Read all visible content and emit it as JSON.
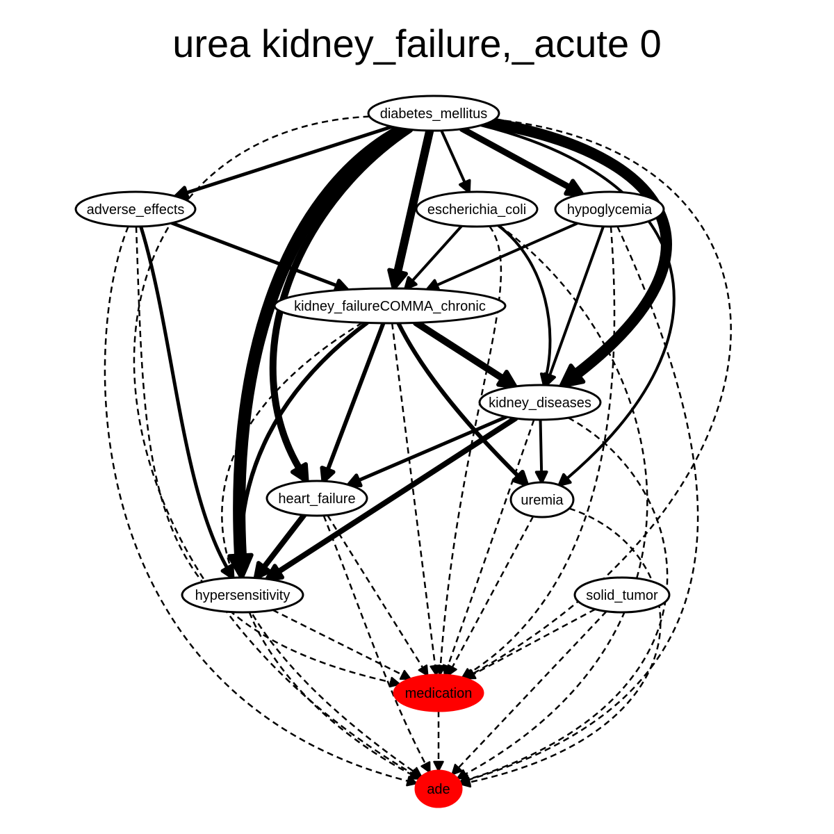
{
  "title": "urea kidney_failure,_acute 0",
  "colors": {
    "highlight": "#ff0000",
    "default_fill": "#ffffff",
    "stroke": "#000000"
  },
  "nodes": {
    "diabetes_mellitus": {
      "label": "diabetes_mellitus",
      "highlight": false
    },
    "adverse_effects": {
      "label": "adverse_effects",
      "highlight": false
    },
    "escherichia_coli": {
      "label": "escherichia_coli",
      "highlight": false
    },
    "hypoglycemia": {
      "label": "hypoglycemia",
      "highlight": false
    },
    "kidney_failure_chronic": {
      "label": "kidney_failureCOMMA_chronic",
      "highlight": false
    },
    "kidney_diseases": {
      "label": "kidney_diseases",
      "highlight": false
    },
    "heart_failure": {
      "label": "heart_failure",
      "highlight": false
    },
    "uremia": {
      "label": "uremia",
      "highlight": false
    },
    "hypersensitivity": {
      "label": "hypersensitivity",
      "highlight": false
    },
    "solid_tumor": {
      "label": "solid_tumor",
      "highlight": false
    },
    "medication": {
      "label": "medication",
      "highlight": true
    },
    "ade": {
      "label": "ade",
      "highlight": true
    }
  },
  "edges": [
    {
      "from": "diabetes_mellitus",
      "to": "adverse_effects",
      "style": "solid",
      "weight": 5
    },
    {
      "from": "diabetes_mellitus",
      "to": "escherichia_coli",
      "style": "solid",
      "weight": 4
    },
    {
      "from": "diabetes_mellitus",
      "to": "hypoglycemia",
      "style": "solid",
      "weight": 9
    },
    {
      "from": "diabetes_mellitus",
      "to": "kidney_failure_chronic",
      "style": "solid",
      "weight": 12
    },
    {
      "from": "diabetes_mellitus",
      "to": "kidney_diseases",
      "style": "solid",
      "weight": 16
    },
    {
      "from": "diabetes_mellitus",
      "to": "heart_failure",
      "style": "solid",
      "weight": 10
    },
    {
      "from": "diabetes_mellitus",
      "to": "hypersensitivity",
      "style": "solid",
      "weight": 18
    },
    {
      "from": "diabetes_mellitus",
      "to": "uremia",
      "style": "solid",
      "weight": 4
    },
    {
      "from": "diabetes_mellitus",
      "to": "medication",
      "style": "dashed",
      "weight": 2.5
    },
    {
      "from": "diabetes_mellitus",
      "to": "ade",
      "style": "dashed",
      "weight": 2.5
    },
    {
      "from": "adverse_effects",
      "to": "kidney_failure_chronic",
      "style": "solid",
      "weight": 5
    },
    {
      "from": "adverse_effects",
      "to": "hypersensitivity",
      "style": "solid",
      "weight": 5
    },
    {
      "from": "adverse_effects",
      "to": "medication",
      "style": "dashed",
      "weight": 2.5
    },
    {
      "from": "adverse_effects",
      "to": "ade",
      "style": "dashed",
      "weight": 2.5
    },
    {
      "from": "escherichia_coli",
      "to": "kidney_failure_chronic",
      "style": "solid",
      "weight": 4
    },
    {
      "from": "escherichia_coli",
      "to": "kidney_diseases",
      "style": "solid",
      "weight": 4
    },
    {
      "from": "escherichia_coli",
      "to": "medication",
      "style": "dashed",
      "weight": 2.5
    },
    {
      "from": "escherichia_coli",
      "to": "ade",
      "style": "dashed",
      "weight": 2.5
    },
    {
      "from": "hypoglycemia",
      "to": "kidney_failure_chronic",
      "style": "solid",
      "weight": 4
    },
    {
      "from": "hypoglycemia",
      "to": "kidney_diseases",
      "style": "solid",
      "weight": 4
    },
    {
      "from": "hypoglycemia",
      "to": "medication",
      "style": "dashed",
      "weight": 2.5
    },
    {
      "from": "hypoglycemia",
      "to": "ade",
      "style": "dashed",
      "weight": 2.5
    },
    {
      "from": "kidney_failure_chronic",
      "to": "kidney_diseases",
      "style": "solid",
      "weight": 10
    },
    {
      "from": "kidney_failure_chronic",
      "to": "heart_failure",
      "style": "solid",
      "weight": 6
    },
    {
      "from": "kidney_failure_chronic",
      "to": "hypersensitivity",
      "style": "solid",
      "weight": 6
    },
    {
      "from": "kidney_failure_chronic",
      "to": "uremia",
      "style": "solid",
      "weight": 6
    },
    {
      "from": "kidney_failure_chronic",
      "to": "medication",
      "style": "dashed",
      "weight": 2.5
    },
    {
      "from": "kidney_failure_chronic",
      "to": "ade",
      "style": "dashed",
      "weight": 2.5
    },
    {
      "from": "kidney_diseases",
      "to": "heart_failure",
      "style": "solid",
      "weight": 5
    },
    {
      "from": "kidney_diseases",
      "to": "hypersensitivity",
      "style": "solid",
      "weight": 8
    },
    {
      "from": "kidney_diseases",
      "to": "uremia",
      "style": "solid",
      "weight": 4
    },
    {
      "from": "kidney_diseases",
      "to": "medication",
      "style": "dashed",
      "weight": 2.5
    },
    {
      "from": "kidney_diseases",
      "to": "ade",
      "style": "dashed",
      "weight": 2.5
    },
    {
      "from": "heart_failure",
      "to": "hypersensitivity",
      "style": "solid",
      "weight": 8
    },
    {
      "from": "heart_failure",
      "to": "medication",
      "style": "dashed",
      "weight": 2.5
    },
    {
      "from": "heart_failure",
      "to": "ade",
      "style": "dashed",
      "weight": 2.5
    },
    {
      "from": "uremia",
      "to": "medication",
      "style": "dashed",
      "weight": 2.5
    },
    {
      "from": "uremia",
      "to": "ade",
      "style": "dashed",
      "weight": 2.5
    },
    {
      "from": "hypersensitivity",
      "to": "medication",
      "style": "dashed",
      "weight": 2.5
    },
    {
      "from": "hypersensitivity",
      "to": "ade",
      "style": "dashed",
      "weight": 2.5
    },
    {
      "from": "solid_tumor",
      "to": "medication",
      "style": "dashed",
      "weight": 2.5
    },
    {
      "from": "solid_tumor",
      "to": "ade",
      "style": "dashed",
      "weight": 2.5
    },
    {
      "from": "medication",
      "to": "ade",
      "style": "dashed",
      "weight": 2.5
    }
  ]
}
